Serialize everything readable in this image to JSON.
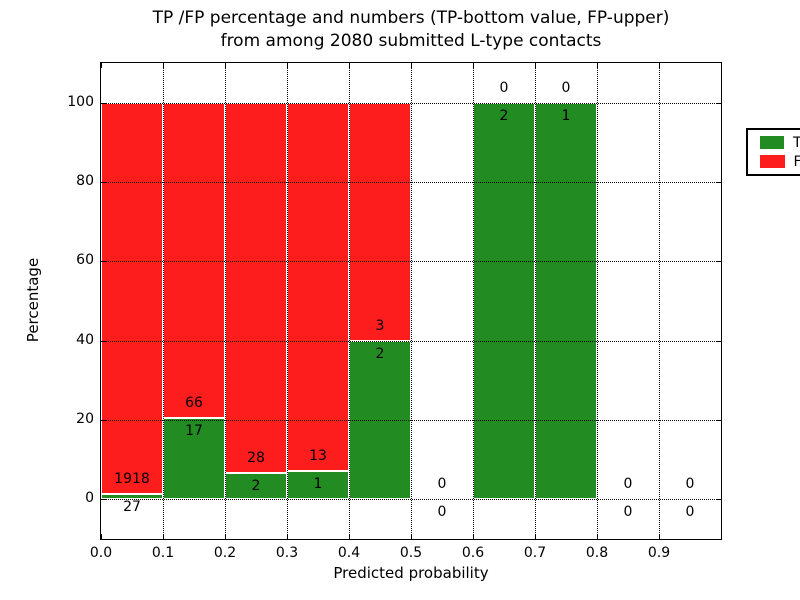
{
  "title": {
    "line1": "TP /FP percentage and numbers (TP-bottom value, FP-upper)",
    "line2": "from among 2080 submitted L-type contacts"
  },
  "chart_data": {
    "type": "bar",
    "stacked": true,
    "title": "TP /FP percentage and numbers (TP-bottom value, FP-upper) from among 2080 submitted L-type contacts",
    "xlabel": "Predicted probability",
    "ylabel": "Percentage",
    "xlim": [
      0.0,
      1.0
    ],
    "ylim": [
      -10,
      110
    ],
    "grid": "dotted, drawn above bars",
    "total_contacts": 2080,
    "colors": {
      "tp": "#228b22",
      "fp": "#fd1d1d",
      "bar_edge": "#ffffff",
      "text": "#000000"
    },
    "yticks": {
      "values": [
        0,
        20,
        40,
        60,
        80,
        100
      ],
      "labels": [
        "0",
        "20",
        "40",
        "60",
        "80",
        "100"
      ]
    },
    "xticks": {
      "values": [
        0.0,
        0.1,
        0.2,
        0.3,
        0.4,
        0.5,
        0.6,
        0.7,
        0.8,
        0.9
      ],
      "labels": [
        "0.0",
        "0.1",
        "0.2",
        "0.3",
        "0.4",
        "0.5",
        "0.6",
        "0.7",
        "0.8",
        "0.9"
      ]
    },
    "legend": {
      "position": "upper right",
      "entries": [
        {
          "label": "TP",
          "color": "#228b22"
        },
        {
          "label": "FP",
          "color": "#fd1d1d"
        }
      ]
    },
    "series_note": "Each bin: green TP% at bottom, red FP% stacked to 100%. FP count printed above the TP/FP boundary, TP count printed below it.",
    "bins": [
      {
        "x0": 0.0,
        "x1": 0.1,
        "tp": 27,
        "fp": 1918,
        "tp_pct": 1.39
      },
      {
        "x0": 0.1,
        "x1": 0.2,
        "tp": 17,
        "fp": 66,
        "tp_pct": 20.48
      },
      {
        "x0": 0.2,
        "x1": 0.3,
        "tp": 2,
        "fp": 28,
        "tp_pct": 6.67
      },
      {
        "x0": 0.3,
        "x1": 0.4,
        "tp": 1,
        "fp": 13,
        "tp_pct": 7.14
      },
      {
        "x0": 0.4,
        "x1": 0.5,
        "tp": 2,
        "fp": 3,
        "tp_pct": 40.0
      },
      {
        "x0": 0.5,
        "x1": 0.6,
        "tp": 0,
        "fp": 0,
        "tp_pct": 0
      },
      {
        "x0": 0.6,
        "x1": 0.7,
        "tp": 2,
        "fp": 0,
        "tp_pct": 100.0
      },
      {
        "x0": 0.7,
        "x1": 0.8,
        "tp": 1,
        "fp": 0,
        "tp_pct": 100.0
      },
      {
        "x0": 0.8,
        "x1": 0.9,
        "tp": 0,
        "fp": 0,
        "tp_pct": 0
      },
      {
        "x0": 0.9,
        "x1": 1.0,
        "tp": 0,
        "fp": 0,
        "tp_pct": 0
      }
    ]
  }
}
